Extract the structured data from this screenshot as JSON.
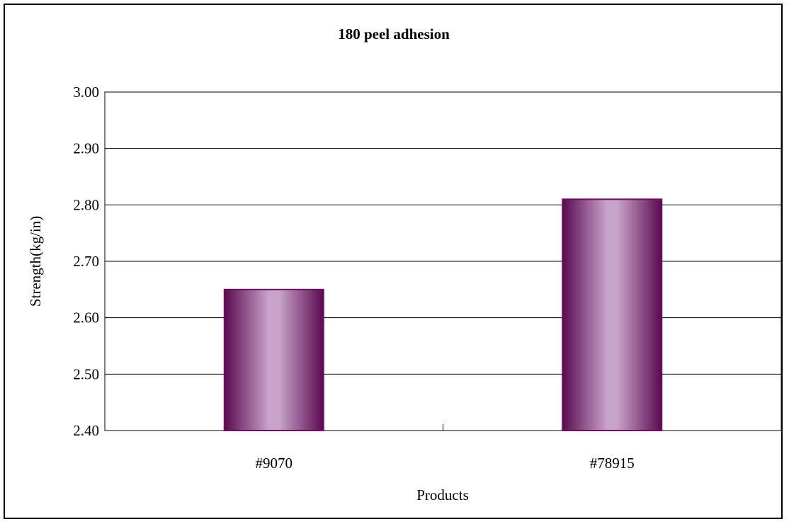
{
  "chart_data": {
    "type": "bar",
    "title": "180 peel adhesion",
    "xlabel": "Products",
    "ylabel": "Strength(kg/in)",
    "categories": [
      "#9070",
      "#78915"
    ],
    "values": [
      2.65,
      2.81
    ],
    "ylim": [
      2.4,
      3.0
    ],
    "yticks": [
      "2.40",
      "2.50",
      "2.60",
      "2.70",
      "2.80",
      "2.90",
      "3.00"
    ],
    "grid": true,
    "legend": "none",
    "colors": {
      "bar_edge": "#6b0f5f",
      "bar_dark": "#5a0a50",
      "bar_light": "#c9a3c9"
    }
  }
}
